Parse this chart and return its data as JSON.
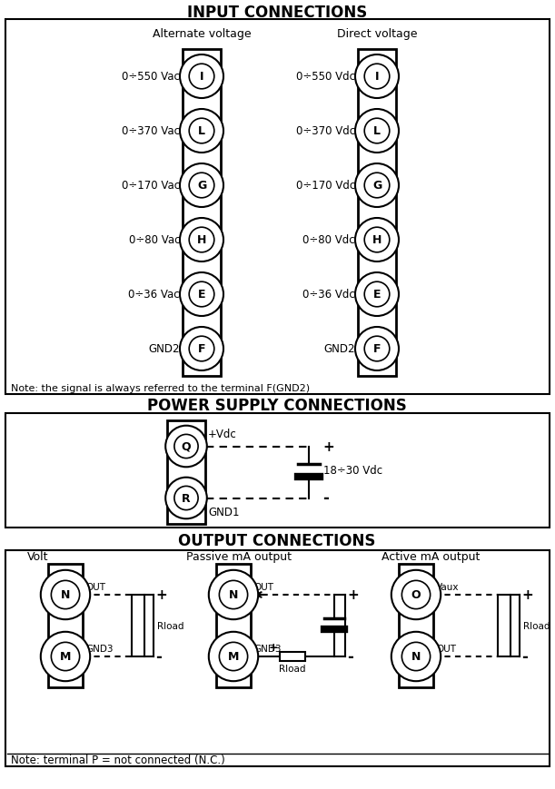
{
  "title_input": "INPUT CONNECTIONS",
  "title_power": "POWER SUPPLY CONNECTIONS",
  "title_output": "OUTPUT CONNECTIONS",
  "input_labels_ac": [
    "0÷550 Vac",
    "0÷370 Vac",
    "0÷170 Vac",
    "0÷80 Vac",
    "0÷36 Vac",
    "GND2"
  ],
  "input_labels_dc": [
    "0÷550 Vdc",
    "0÷370 Vdc",
    "0÷170 Vdc",
    "0÷80 Vdc",
    "0÷36 Vdc",
    "GND2"
  ],
  "input_terminals": [
    "I",
    "L",
    "G",
    "H",
    "E",
    "F"
  ],
  "ac_label": "Alternate voltage",
  "dc_label": "Direct voltage",
  "note_input": "Note: the signal is always referred to the terminal F(GND2)",
  "note_output": "Note: terminal P = not connected (N.C.)",
  "power_terminals": [
    "Q",
    "R"
  ],
  "volt_terminals": [
    "N",
    "M"
  ],
  "passive_terminals": [
    "N",
    "M"
  ],
  "active_terminals": [
    "O",
    "N"
  ],
  "bg_color": "#ffffff"
}
